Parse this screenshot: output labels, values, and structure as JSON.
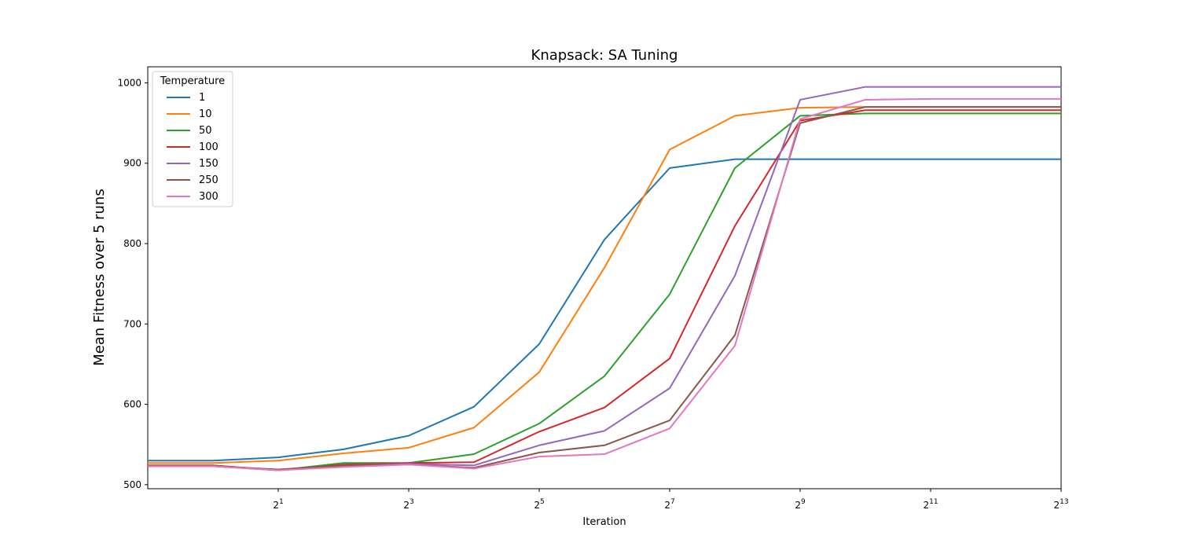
{
  "chart_data": {
    "type": "line",
    "title": "Knapsack: SA Tuning",
    "xlabel": "Iteration",
    "ylabel": "Mean Fitness over 5 runs",
    "x_scale": "log2",
    "xlim": [
      0.5,
      8192
    ],
    "ylim": [
      495,
      1020
    ],
    "x_ticks": [
      {
        "value": 2,
        "base": "2",
        "exp": "1"
      },
      {
        "value": 8,
        "base": "2",
        "exp": "3"
      },
      {
        "value": 32,
        "base": "2",
        "exp": "5"
      },
      {
        "value": 128,
        "base": "2",
        "exp": "7"
      },
      {
        "value": 512,
        "base": "2",
        "exp": "9"
      },
      {
        "value": 2048,
        "base": "2",
        "exp": "11"
      },
      {
        "value": 8192,
        "base": "2",
        "exp": "13"
      }
    ],
    "y_ticks": [
      500,
      600,
      700,
      800,
      900,
      1000
    ],
    "grid": false,
    "legend": {
      "title": "Temperature",
      "placement": "top-left"
    },
    "x": [
      0.5,
      1,
      2,
      4,
      8,
      16,
      32,
      64,
      128,
      256,
      512,
      1024,
      2048,
      4096,
      8192
    ],
    "series": [
      {
        "name": "1",
        "color": "#1f77b4",
        "values": [
          530,
          530,
          534,
          544,
          561,
          597,
          675,
          805,
          894,
          905,
          905,
          905,
          905,
          905,
          905
        ]
      },
      {
        "name": "10",
        "color": "#ff7f0e",
        "values": [
          527,
          527,
          530,
          539,
          546,
          571,
          640,
          770,
          917,
          959,
          969,
          970,
          970,
          970,
          970
        ]
      },
      {
        "name": "50",
        "color": "#2ca02c",
        "values": [
          524,
          524,
          518,
          527,
          527,
          538,
          576,
          635,
          737,
          894,
          959,
          962,
          962,
          962,
          962
        ]
      },
      {
        "name": "100",
        "color": "#d62728",
        "values": [
          524,
          524,
          518,
          525,
          527,
          528,
          566,
          596,
          657,
          822,
          953,
          966,
          966,
          966,
          966
        ]
      },
      {
        "name": "150",
        "color": "#9467bd",
        "values": [
          523,
          523,
          518,
          524,
          526,
          524,
          549,
          567,
          620,
          760,
          979,
          995,
          995,
          995,
          995
        ]
      },
      {
        "name": "250",
        "color": "#8c564b",
        "values": [
          523,
          523,
          519,
          524,
          525,
          521,
          540,
          549,
          580,
          686,
          950,
          970,
          970,
          970,
          970
        ]
      },
      {
        "name": "300",
        "color": "#e377c2",
        "values": [
          523,
          523,
          518,
          522,
          525,
          520,
          535,
          538,
          570,
          673,
          955,
          979,
          980,
          980,
          980
        ]
      }
    ]
  }
}
